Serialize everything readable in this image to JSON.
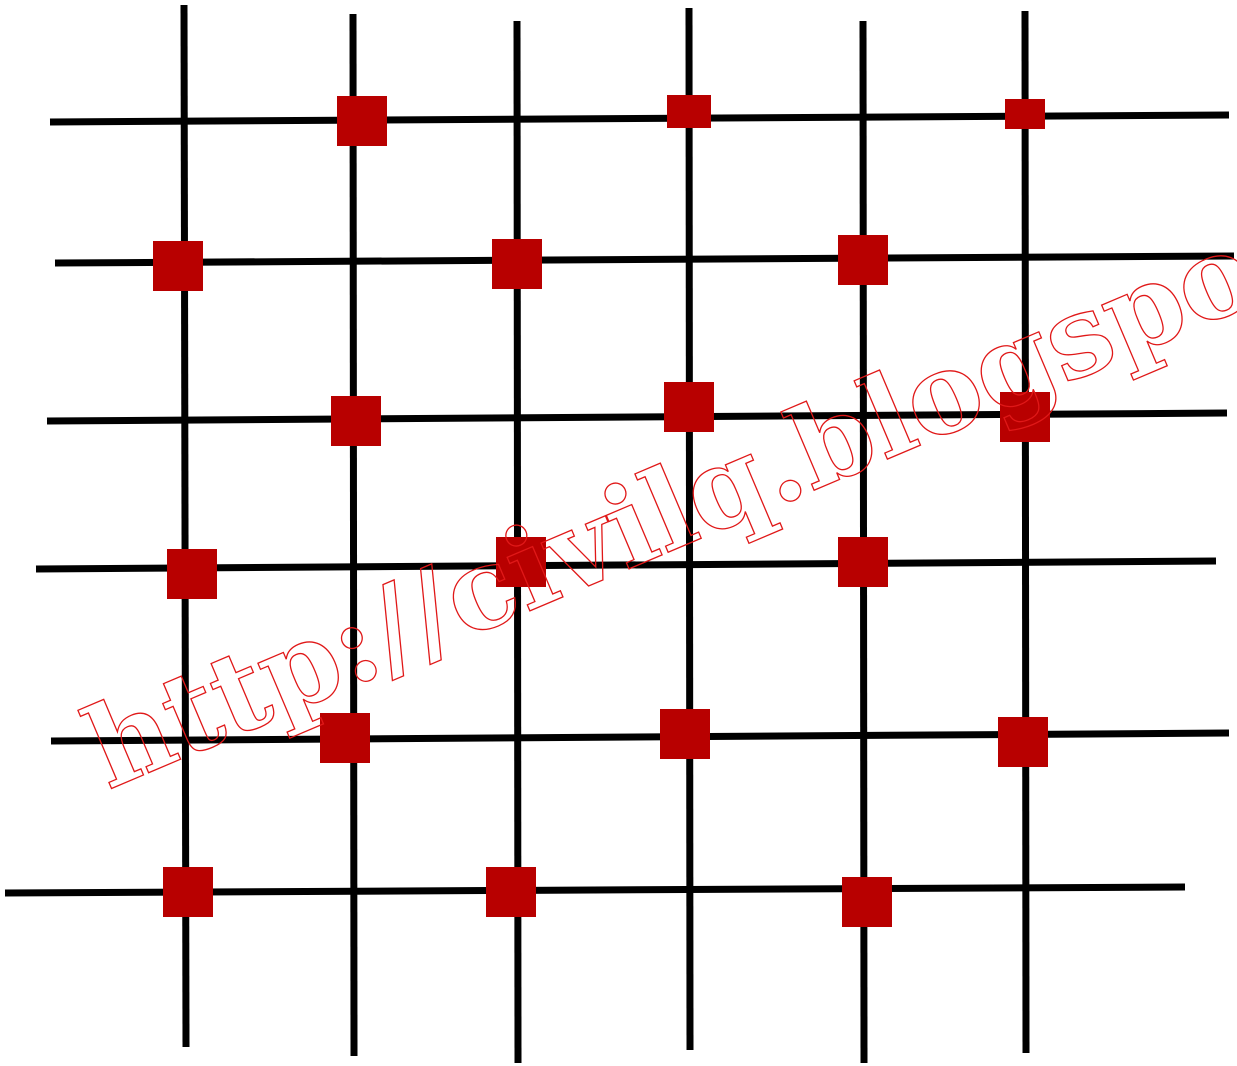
{
  "diagram": {
    "line_color": "#000000",
    "marker_color": "#b80000",
    "watermark_color": "#e01818",
    "watermark_text": "http://civilq.blogspot.com",
    "grid": {
      "vertical_lines": 6,
      "horizontal_lines": 6
    },
    "markers": [
      {
        "row": 1,
        "col": 2
      },
      {
        "row": 1,
        "col": 4
      },
      {
        "row": 1,
        "col": 6
      },
      {
        "row": 2,
        "col": 1
      },
      {
        "row": 2,
        "col": 3
      },
      {
        "row": 2,
        "col": 5
      },
      {
        "row": 3,
        "col": 2
      },
      {
        "row": 3,
        "col": 4
      },
      {
        "row": 3,
        "col": 6
      },
      {
        "row": 4,
        "col": 1
      },
      {
        "row": 4,
        "col": 3
      },
      {
        "row": 4,
        "col": 5
      },
      {
        "row": 5,
        "col": 2
      },
      {
        "row": 5,
        "col": 4
      },
      {
        "row": 5,
        "col": 6
      },
      {
        "row": 6,
        "col": 1
      },
      {
        "row": 6,
        "col": 3
      },
      {
        "row": 6,
        "col": 5
      }
    ]
  }
}
